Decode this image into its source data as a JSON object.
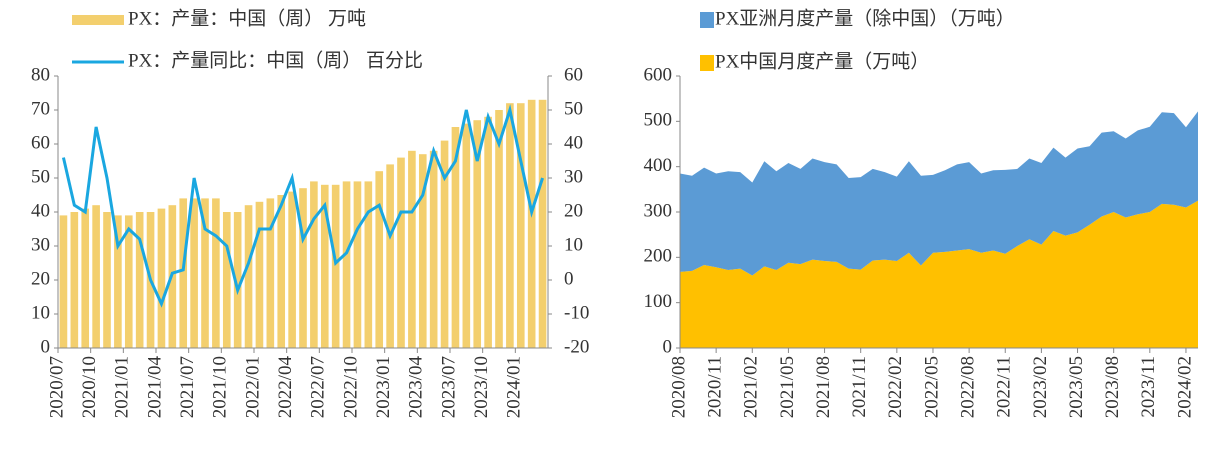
{
  "chart_data": [
    {
      "type": "combo",
      "categories": [
        "2020/07",
        null,
        null,
        "2020/10",
        null,
        null,
        "2021/01",
        null,
        null,
        "2021/04",
        null,
        null,
        "2021/07",
        null,
        null,
        "2021/10",
        null,
        null,
        "2022/01",
        null,
        null,
        "2022/04",
        null,
        null,
        "2022/07",
        null,
        null,
        "2022/10",
        null,
        null,
        "2023/01",
        null,
        null,
        "2023/04",
        null,
        null,
        "2023/07",
        null,
        null,
        "2023/10",
        null,
        null,
        "2024/01",
        null,
        null
      ],
      "series": [
        {
          "name": "PX：产量：中国（周） 万吨",
          "color": "#f3cf6e",
          "type": "bar",
          "values": [
            39,
            40,
            41,
            42,
            40,
            39,
            39,
            40,
            40,
            41,
            42,
            44,
            44,
            44,
            44,
            40,
            40,
            42,
            43,
            44,
            45,
            46,
            47,
            49,
            48,
            48,
            49,
            49,
            49,
            52,
            54,
            56,
            58,
            57,
            58,
            61,
            65,
            66,
            67,
            68,
            70,
            72,
            72,
            73,
            73
          ]
        },
        {
          "name": "PX：产量同比：中国（周） 百分比",
          "color": "#1aa7e0",
          "type": "line",
          "axis": "y2",
          "values": [
            36,
            22,
            20,
            45,
            30,
            10,
            15,
            12,
            0,
            -7,
            2,
            3,
            30,
            15,
            13,
            10,
            -3,
            5,
            15,
            15,
            22,
            30,
            12,
            18,
            22,
            5,
            8,
            15,
            20,
            22,
            13,
            20,
            20,
            25,
            38,
            30,
            35,
            50,
            35,
            48,
            40,
            50,
            35,
            20,
            30
          ]
        }
      ],
      "ylim": [
        0,
        80
      ],
      "yticks": [
        0,
        10,
        20,
        30,
        40,
        50,
        60,
        70,
        80
      ],
      "y2lim": [
        -20,
        60
      ],
      "y2ticks": [
        -20,
        -10,
        0,
        10,
        20,
        30,
        40,
        50,
        60
      ]
    },
    {
      "type": "area",
      "stacked": true,
      "categories": [
        "2020/08",
        null,
        null,
        "2020/11",
        null,
        null,
        "2021/02",
        null,
        null,
        "2021/05",
        null,
        null,
        "2021/08",
        null,
        null,
        "2021/11",
        null,
        null,
        "2022/02",
        null,
        null,
        "2022/05",
        null,
        null,
        "2022/08",
        null,
        null,
        "2022/11",
        null,
        null,
        "2023/02",
        null,
        null,
        "2023/05",
        null,
        null,
        "2023/08",
        null,
        null,
        "2023/11",
        null,
        null,
        "2024/02",
        null
      ],
      "series": [
        {
          "name": "PX亚洲月度产量（除中国）（万吨）",
          "color": "#5b9bd5",
          "values": [
            217,
            210,
            215,
            207,
            218,
            213,
            205,
            232,
            218,
            220,
            210,
            223,
            218,
            215,
            200,
            204,
            202,
            193,
            186,
            202,
            198,
            172,
            180,
            190,
            192,
            175,
            177,
            185,
            170,
            178,
            180,
            184,
            172,
            185,
            173,
            185,
            178,
            174,
            185,
            188,
            202,
            202,
            177,
            197
          ]
        },
        {
          "name": "PX中国月度产量（万吨）",
          "color": "#ffc000",
          "values": [
            168,
            170,
            183,
            178,
            172,
            175,
            160,
            180,
            172,
            188,
            185,
            195,
            192,
            190,
            175,
            173,
            193,
            195,
            192,
            210,
            182,
            210,
            212,
            215,
            218,
            210,
            215,
            208,
            225,
            240,
            228,
            258,
            248,
            255,
            272,
            290,
            300,
            288,
            295,
            300,
            318,
            316,
            310,
            325
          ]
        }
      ],
      "ylim": [
        0,
        600
      ],
      "yticks": [
        0,
        100,
        200,
        300,
        400,
        500,
        600
      ]
    }
  ]
}
